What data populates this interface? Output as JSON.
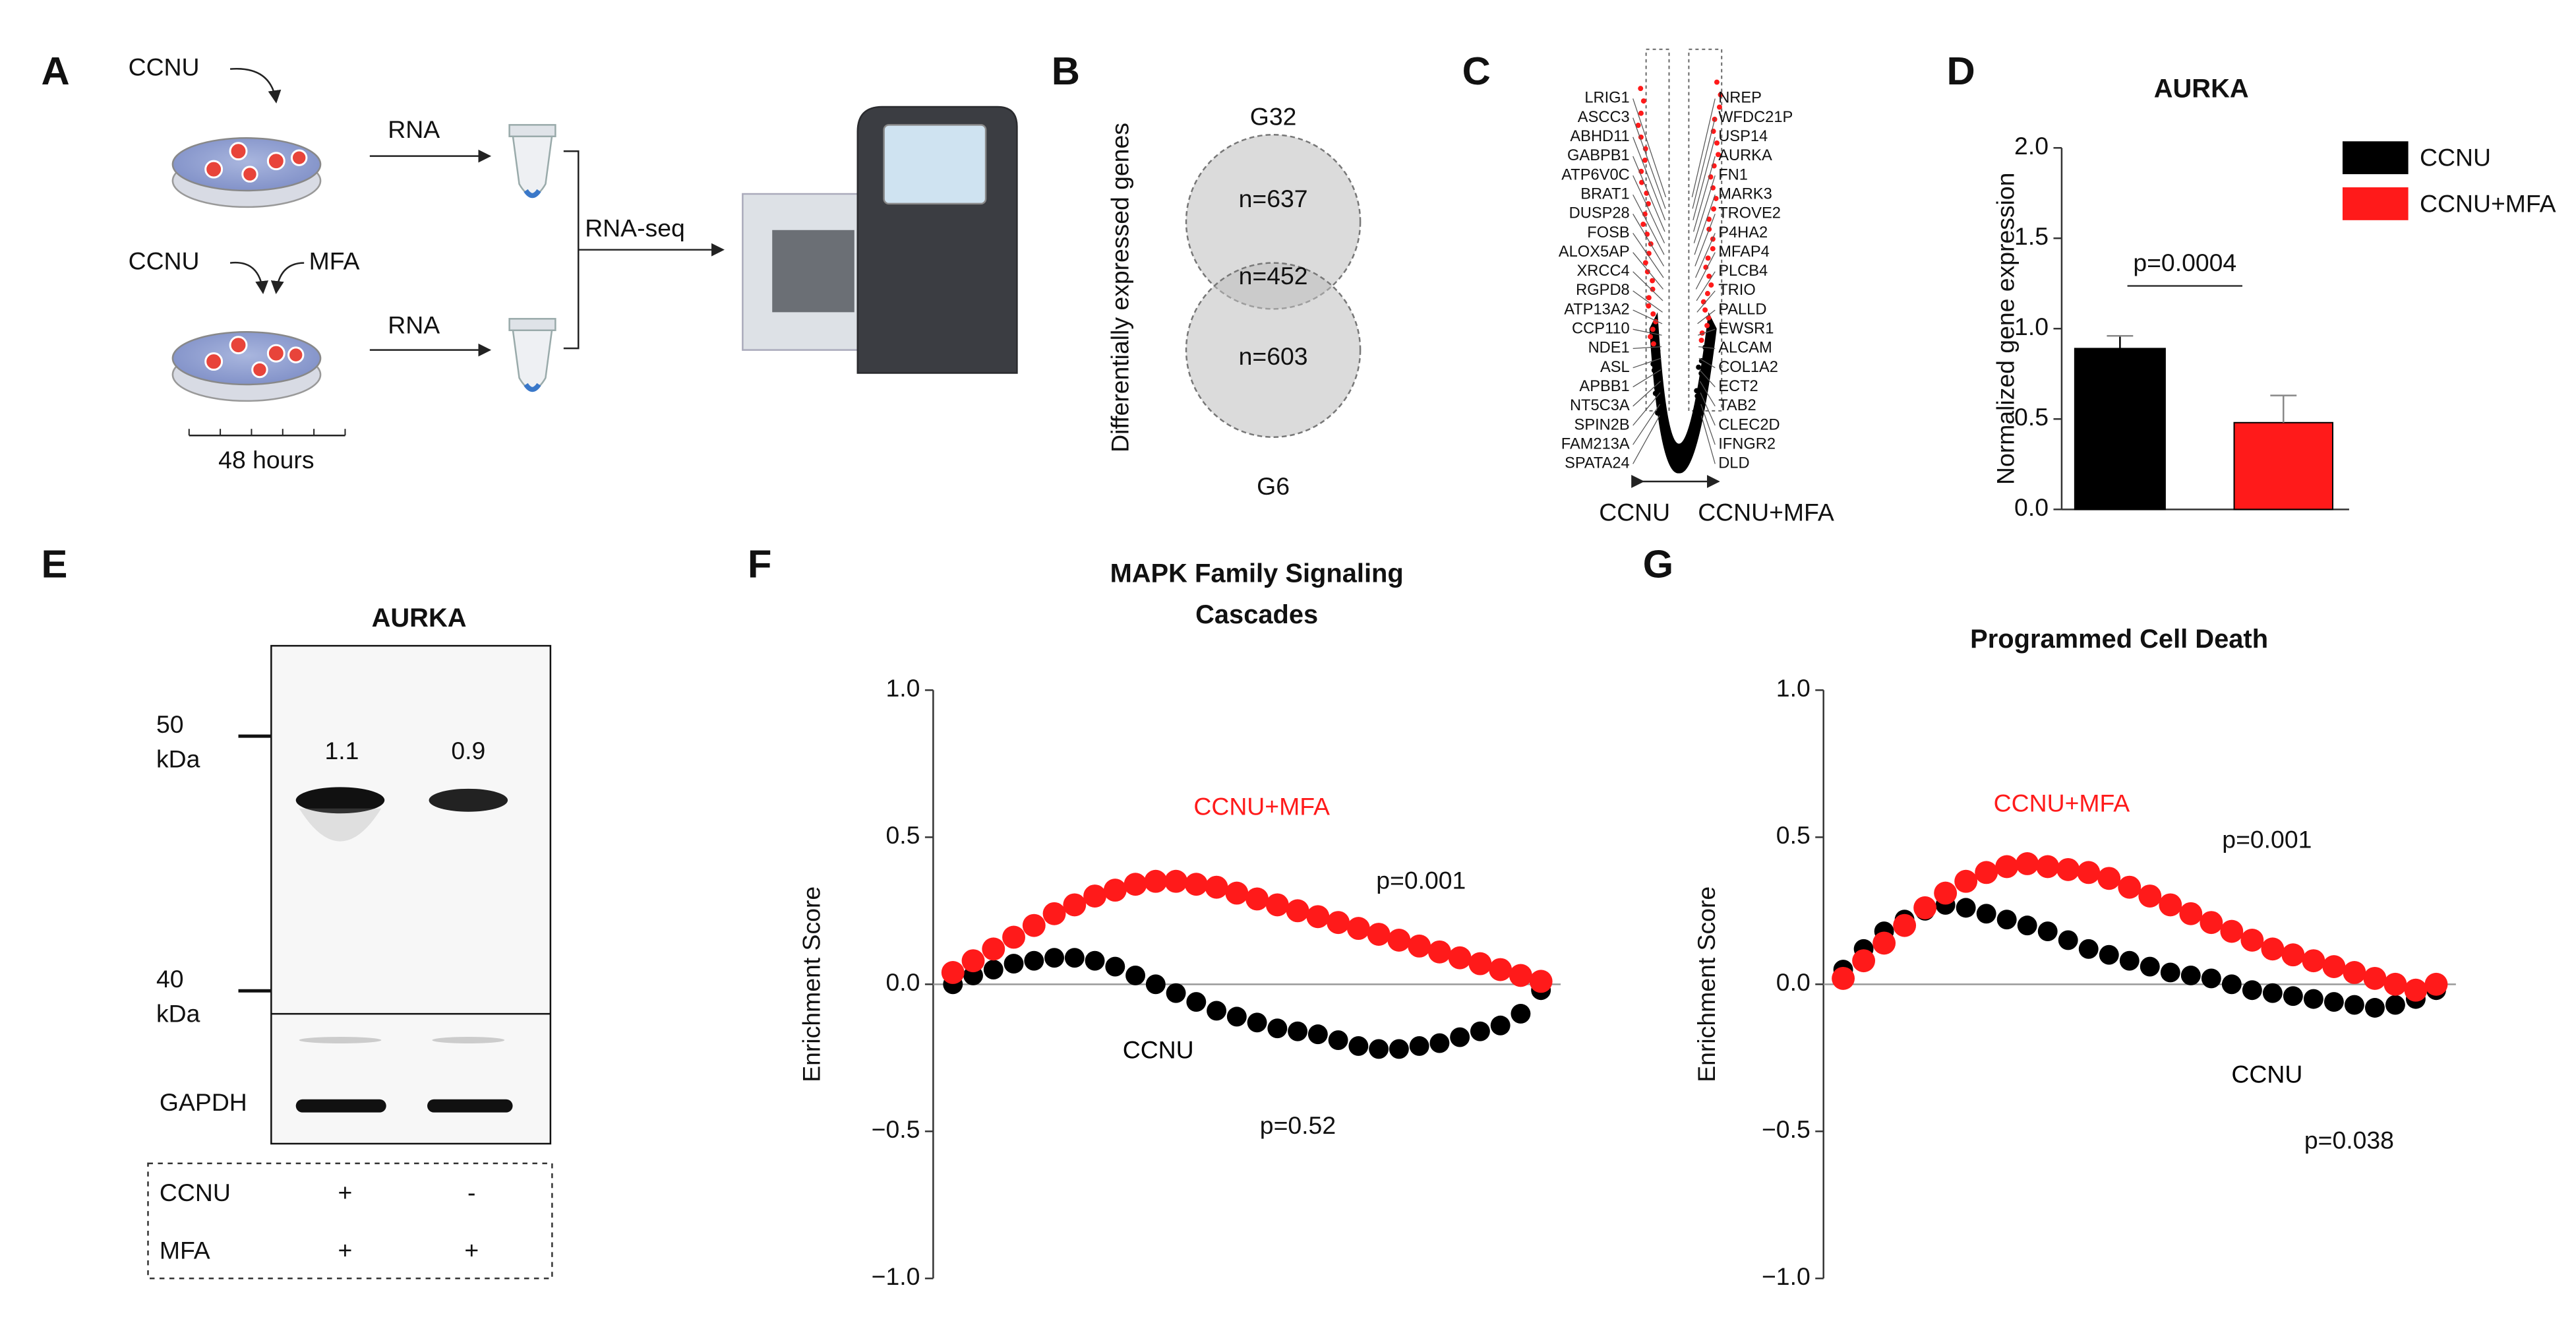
{
  "panel_a": {
    "label": "A",
    "drug_top": "CCNU",
    "drug_bottom_1": "CCNU",
    "drug_bottom_2": "MFA",
    "rna_top": "RNA",
    "rna_bottom": "RNA",
    "sequencing": "RNA-seq",
    "time": "48 hours"
  },
  "panel_b": {
    "label": "B",
    "axis_label": "Differentially expressed genes",
    "top_group": "G32",
    "bottom_group": "G6",
    "top_only": "n=637",
    "overlap": "n=452",
    "bottom_only": "n=603"
  },
  "panel_c": {
    "label": "C",
    "left_genes": [
      "LRIG1",
      "ASCC3",
      "ABHD11",
      "GABPB1",
      "ATP6V0C",
      "BRAT1",
      "DUSP28",
      "FOSB",
      "ALOX5AP",
      "XRCC4",
      "RGPD8",
      "ATP13A2",
      "CCP110",
      "NDE1",
      "ASL",
      "APBB1",
      "NT5C3A",
      "SPIN2B",
      "FAM213A",
      "SPATA24"
    ],
    "right_genes": [
      "NREP",
      "WFDC21P",
      "USP14",
      "AURKA",
      "FN1",
      "MARK3",
      "TROVE2",
      "P4HA2",
      "MFAP4",
      "PLCB4",
      "TRIO",
      "PALLD",
      "EWSR1",
      "ALCAM",
      "COL1A2",
      "ECT2",
      "TAB2",
      "CLEC2D",
      "IFNGR2",
      "DLD"
    ],
    "left_axis": "CCNU",
    "right_axis": "CCNU+MFA"
  },
  "panel_e": {
    "label": "E",
    "title": "AURKA",
    "marker_top": "50",
    "marker_top_unit": "kDa",
    "marker_bottom": "40",
    "marker_bottom_unit": "kDa",
    "band_values": [
      "1.1",
      "0.9"
    ],
    "loading_control": "GAPDH",
    "conditions": [
      [
        "CCNU",
        "+",
        "-"
      ],
      [
        "MFA",
        "+",
        "+"
      ]
    ]
  },
  "chart_data": [
    {
      "type": "bar",
      "panel_label": "D",
      "title": "AURKA",
      "y_label": "Normalized gene expression",
      "series": [
        {
          "name": "CCNU",
          "color": "#000000",
          "values": [
            0.89
          ],
          "errors": [
            0.07
          ]
        },
        {
          "name": "CCNU+MFA",
          "color": "#ff1a1a",
          "values": [
            0.48
          ],
          "errors": [
            0.15
          ]
        }
      ],
      "ylim": [
        0,
        2
      ],
      "yticks": [
        {
          "value": 0,
          "label": "0.0"
        },
        {
          "value": 0.5,
          "label": "0.5"
        },
        {
          "value": 1,
          "label": "1.0"
        },
        {
          "value": 1.5,
          "label": "1.5"
        },
        {
          "value": 2,
          "label": "2.0"
        }
      ],
      "annotations": [
        "p=0.0004"
      ],
      "legend": "upper right"
    },
    {
      "type": "scatter",
      "panel_label": "F",
      "title": [
        "MAPK Family Signaling",
        "Cascades"
      ],
      "y_label": "Enrichment Score",
      "series": [
        {
          "name": "CCNU",
          "color": "#000000",
          "values": [
            0.0,
            0.03,
            0.05,
            0.07,
            0.08,
            0.09,
            0.09,
            0.08,
            0.06,
            0.03,
            0.0,
            -0.03,
            -0.06,
            -0.09,
            -0.11,
            -0.13,
            -0.15,
            -0.16,
            -0.17,
            -0.19,
            -0.21,
            -0.22,
            -0.22,
            -0.21,
            -0.2,
            -0.18,
            -0.16,
            -0.14,
            -0.1,
            -0.02
          ]
        },
        {
          "name": "CCNU+MFA",
          "color": "#ff1a1a",
          "values": [
            0.04,
            0.08,
            0.12,
            0.16,
            0.2,
            0.24,
            0.27,
            0.3,
            0.32,
            0.34,
            0.35,
            0.35,
            0.34,
            0.33,
            0.31,
            0.29,
            0.27,
            0.25,
            0.23,
            0.21,
            0.19,
            0.17,
            0.15,
            0.13,
            0.11,
            0.09,
            0.07,
            0.05,
            0.03,
            0.01
          ]
        }
      ],
      "ylim": [
        -1,
        1
      ],
      "yticks": [
        {
          "value": -1,
          "label": "−1.0"
        },
        {
          "value": -0.5,
          "label": "−0.5"
        },
        {
          "value": 0,
          "label": "0.0"
        },
        {
          "value": 0.5,
          "label": "0.5"
        },
        {
          "value": 1,
          "label": "1.0"
        }
      ],
      "annotations": [
        "p=0.001",
        "p=0.52"
      ]
    },
    {
      "type": "scatter",
      "panel_label": "G",
      "title": "Programmed Cell Death",
      "y_label": "Enrichment Score",
      "series": [
        {
          "name": "CCNU",
          "color": "#000000",
          "values": [
            0.05,
            0.12,
            0.18,
            0.22,
            0.25,
            0.27,
            0.26,
            0.24,
            0.22,
            0.2,
            0.18,
            0.15,
            0.12,
            0.1,
            0.08,
            0.06,
            0.04,
            0.03,
            0.02,
            0.0,
            -0.02,
            -0.03,
            -0.04,
            -0.05,
            -0.06,
            -0.07,
            -0.08,
            -0.07,
            -0.05,
            -0.02
          ]
        },
        {
          "name": "CCNU+MFA",
          "color": "#ff1a1a",
          "values": [
            0.02,
            0.08,
            0.14,
            0.2,
            0.26,
            0.31,
            0.35,
            0.38,
            0.4,
            0.41,
            0.4,
            0.39,
            0.38,
            0.36,
            0.33,
            0.3,
            0.27,
            0.24,
            0.21,
            0.18,
            0.15,
            0.12,
            0.1,
            0.08,
            0.06,
            0.04,
            0.02,
            0.0,
            -0.02,
            0.0
          ]
        }
      ],
      "ylim": [
        -1,
        1
      ],
      "yticks": [
        {
          "value": -1,
          "label": "−1.0"
        },
        {
          "value": -0.5,
          "label": "−0.5"
        },
        {
          "value": 0,
          "label": "0.0"
        },
        {
          "value": 0.5,
          "label": "0.5"
        },
        {
          "value": 1,
          "label": "1.0"
        }
      ],
      "annotations": [
        "p=0.001",
        "p=0.038"
      ]
    }
  ]
}
